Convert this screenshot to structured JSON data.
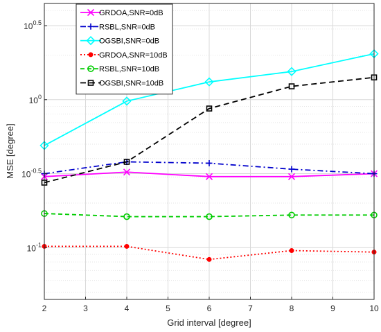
{
  "chart_data": {
    "type": "line",
    "xlabel": "Grid interval [degree]",
    "ylabel": "MSE [degree]",
    "xlim": [
      2,
      10
    ],
    "ylim_log10": [
      -1.35,
      0.65
    ],
    "y_scale": "log",
    "grid": true,
    "legend_position": "top-left",
    "x_ticks": [
      "2",
      "3",
      "4",
      "5",
      "6",
      "7",
      "8",
      "9",
      "10"
    ],
    "y_ticks": [
      {
        "base": "10",
        "exp": "0.5",
        "log10": 0.5
      },
      {
        "base": "10",
        "exp": "0",
        "log10": 0
      },
      {
        "base": "10",
        "exp": "-0.5",
        "log10": -0.5
      },
      {
        "base": "10",
        "exp": "-1",
        "log10": -1
      }
    ],
    "x": [
      2,
      4,
      6,
      8,
      10
    ],
    "series": [
      {
        "name": "GRDOA,SNR=0dB",
        "color": "#ff00ff",
        "dash": "",
        "marker": "x",
        "values": [
          0.302,
          0.324,
          0.302,
          0.302,
          0.316
        ]
      },
      {
        "name": "RSBL,SNR=0dB",
        "color": "#0000cc",
        "dash": "8,4,2,4",
        "marker": "+",
        "values": [
          0.316,
          0.38,
          0.372,
          0.339,
          0.316
        ]
      },
      {
        "name": "OGSBI,SNR=0dB",
        "color": "#00ffff",
        "dash": "",
        "marker": "diamond",
        "values": [
          0.49,
          0.977,
          1.318,
          1.549,
          2.042
        ]
      },
      {
        "name": "GRDOA,SNR=10dB",
        "color": "#ff0000",
        "dash": "2,3",
        "marker": "dot",
        "values": [
          0.102,
          0.102,
          0.0832,
          0.0955,
          0.0933
        ]
      },
      {
        "name": "RSBL,SNR=10dB",
        "color": "#00cc00",
        "dash": "6,4",
        "marker": "circle",
        "values": [
          0.17,
          0.162,
          0.162,
          0.166,
          0.166
        ]
      },
      {
        "name": "OGSBI,SNR=10dB",
        "color": "#000000",
        "dash": "8,5",
        "marker": "square",
        "values": [
          0.275,
          0.38,
          0.871,
          1.23,
          1.413
        ]
      }
    ]
  }
}
